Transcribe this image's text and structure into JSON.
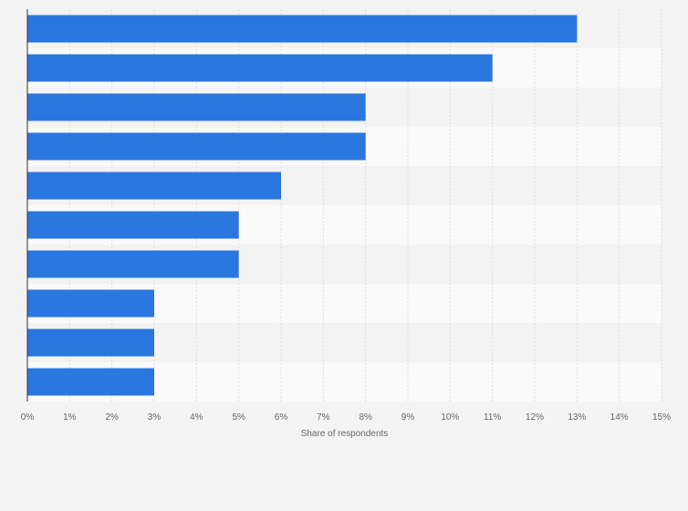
{
  "chart_data": {
    "type": "bar",
    "orientation": "horizontal",
    "categories": [
      "",
      "",
      "",
      "",
      "",
      "",
      "",
      "",
      "",
      ""
    ],
    "values": [
      13,
      11,
      8,
      8,
      6,
      5,
      5,
      3,
      3,
      3
    ],
    "title": "",
    "xlabel": "Share of respondents",
    "ylabel": "",
    "xlim": [
      0,
      15
    ],
    "x_ticks": [
      "0%",
      "1%",
      "2%",
      "3%",
      "4%",
      "5%",
      "6%",
      "7%",
      "8%",
      "9%",
      "10%",
      "11%",
      "12%",
      "13%",
      "14%",
      "15%"
    ],
    "grid": true,
    "legend": "none",
    "colors": {
      "bar": "#2a77e0",
      "band_light": "#fafafa",
      "band_dark": "#f3f3f3",
      "grid": "#dddddd",
      "axis": "#333333"
    }
  }
}
